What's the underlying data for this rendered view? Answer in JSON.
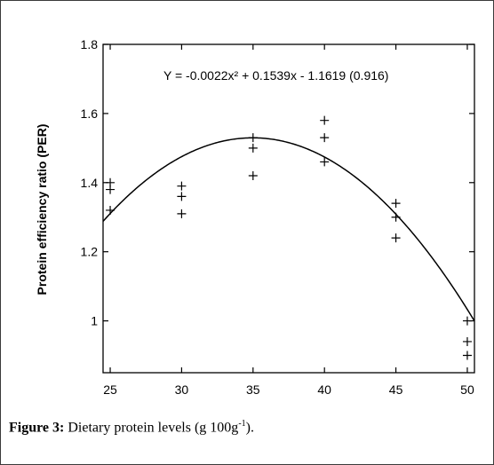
{
  "chart_data": {
    "type": "scatter",
    "title": "",
    "equation": "Y = -0.0022x² + 0.1539x - 1.1619 (0.916)",
    "fit": {
      "a": -0.0022,
      "b": 0.1539,
      "c": -1.1619,
      "r2": 0.916
    },
    "xlabel": "",
    "ylabel": "Protein efficiency ratio (PER)",
    "xlim": [
      24.5,
      50.5
    ],
    "ylim": [
      0.85,
      1.8
    ],
    "xticks": [
      25,
      30,
      35,
      40,
      45,
      50
    ],
    "xtick_labels": [
      "25",
      "30",
      "35",
      "40",
      "45",
      "50"
    ],
    "yticks": [
      1,
      1.2,
      1.4,
      1.6,
      1.8
    ],
    "ytick_labels": [
      "1",
      "1.2",
      "1.4",
      "1.6",
      "1.8"
    ],
    "grid": false,
    "marker": "+",
    "series": [
      {
        "points": [
          [
            25,
            1.4
          ],
          [
            25,
            1.38
          ],
          [
            25,
            1.32
          ],
          [
            30,
            1.39
          ],
          [
            30,
            1.36
          ],
          [
            30,
            1.31
          ],
          [
            35,
            1.53
          ],
          [
            35,
            1.5
          ],
          [
            35,
            1.42
          ],
          [
            40,
            1.58
          ],
          [
            40,
            1.53
          ],
          [
            40,
            1.46
          ],
          [
            45,
            1.34
          ],
          [
            45,
            1.3
          ],
          [
            45,
            1.24
          ],
          [
            50,
            1.0
          ],
          [
            50,
            0.94
          ],
          [
            50,
            0.9
          ]
        ]
      }
    ]
  },
  "caption": {
    "label": "Figure 3:",
    "text": " Dietary protein levels (g 100g",
    "superscript": "-1",
    "suffix": ")."
  }
}
